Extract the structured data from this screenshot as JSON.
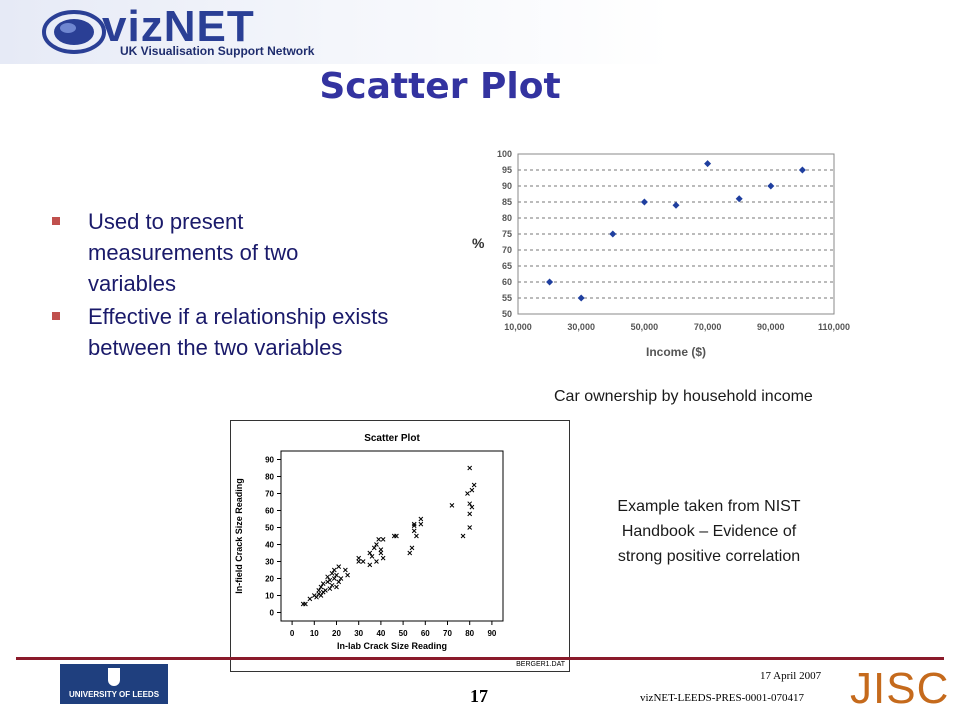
{
  "header": {
    "logo_word": "vizNET",
    "logo_sub": "UK Visualisation Support Network"
  },
  "slide": {
    "title": "Scatter Plot",
    "bullets": [
      "Used to present measurements of two variables",
      "Effective if a relationship exists between the two variables"
    ],
    "caption_income": "Car ownership by household income",
    "caption_nist": "Example taken from NIST Handbook – Evidence of strong positive correlation"
  },
  "footer": {
    "leeds_label": "UNIVERSITY OF LEEDS",
    "page_number": "17",
    "date": "17 April 2007",
    "reference": "vizNET-LEEDS-PRES-0001-070417",
    "jisc": "JISC"
  },
  "colors": {
    "title": "#3333a0",
    "bullet_text": "#1a1a6a",
    "bullet_marker": "#c0504d",
    "marker_blue": "#1f3f9f",
    "rule": "#8a1a2a",
    "jisc": "#c56a1c"
  },
  "chart_data": [
    {
      "type": "scatter",
      "title": "",
      "xlabel": "Income ($)",
      "ylabel": "%",
      "xlim": [
        10000,
        110000
      ],
      "ylim": [
        50,
        100
      ],
      "x_ticks": [
        10000,
        30000,
        50000,
        70000,
        90000,
        110000
      ],
      "x_tick_labels": [
        "10,000",
        "30,000",
        "50,000",
        "70,000",
        "90,000",
        "110,000"
      ],
      "y_ticks": [
        50,
        55,
        60,
        65,
        70,
        75,
        80,
        85,
        90,
        95,
        100
      ],
      "y_tick_labels": [
        "50",
        "55",
        "60",
        "65",
        "70",
        "75",
        "80",
        "85",
        "90",
        "95",
        "100"
      ],
      "grid": "horizontal-dashed",
      "x": [
        20000,
        30000,
        40000,
        50000,
        60000,
        70000,
        80000,
        90000,
        100000
      ],
      "y": [
        60,
        55,
        75,
        85,
        84,
        97,
        86,
        90,
        95
      ]
    },
    {
      "type": "scatter",
      "title": "Scatter Plot",
      "xlabel": "In-lab Crack Size Reading",
      "ylabel": "In-field Crack Size Reading",
      "source_label": "BERGER1.DAT",
      "xlim": [
        -5,
        95
      ],
      "ylim": [
        -5,
        95
      ],
      "x_ticks": [
        0,
        10,
        20,
        30,
        40,
        50,
        60,
        70,
        80,
        90
      ],
      "x_tick_labels": [
        "0",
        "10",
        "20",
        "30",
        "40",
        "50",
        "60",
        "70",
        "80",
        "90"
      ],
      "y_ticks": [
        0,
        10,
        20,
        30,
        40,
        50,
        60,
        70,
        80,
        90
      ],
      "y_tick_labels": [
        "0",
        "10",
        "20",
        "30",
        "40",
        "50",
        "60",
        "70",
        "80",
        "90"
      ],
      "x": [
        5,
        6,
        8,
        10,
        11,
        12,
        12,
        13,
        13,
        14,
        14,
        15,
        16,
        16,
        17,
        17,
        18,
        18,
        19,
        19,
        20,
        20,
        21,
        21,
        22,
        24,
        25,
        30,
        30,
        32,
        35,
        35,
        36,
        37,
        38,
        38,
        39,
        40,
        40,
        41,
        41,
        46,
        47,
        53,
        54,
        55,
        55,
        55,
        56,
        58,
        58,
        72,
        77,
        79,
        80,
        80,
        80,
        80,
        81,
        81,
        82
      ],
      "y": [
        5,
        5,
        8,
        10,
        9,
        11,
        13,
        10,
        15,
        12,
        17,
        13,
        18,
        21,
        14,
        19,
        16,
        23,
        20,
        25,
        15,
        22,
        18,
        27,
        20,
        25,
        22,
        32,
        30,
        30,
        28,
        35,
        33,
        38,
        30,
        40,
        43,
        35,
        37,
        32,
        43,
        45,
        45,
        35,
        38,
        48,
        51,
        52,
        45,
        55,
        52,
        63,
        45,
        70,
        50,
        58,
        64,
        85,
        72,
        62,
        75
      ]
    }
  ]
}
